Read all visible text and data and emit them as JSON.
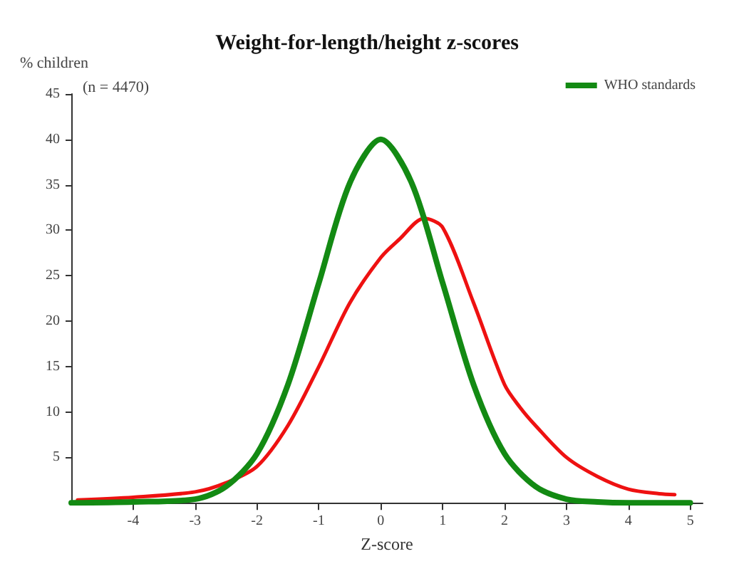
{
  "chart_data": {
    "type": "line",
    "title": "Weight-for-length/height z-scores",
    "xlabel": "Z-score",
    "ylabel": "% children",
    "annotations": [
      "(n = 4470)"
    ],
    "xlim": [
      -5,
      5.2
    ],
    "xticks": [
      -4,
      -3,
      -2,
      -1,
      0,
      1,
      2,
      3,
      4,
      5
    ],
    "ylim": [
      0,
      45
    ],
    "yticks": [
      5,
      10,
      15,
      20,
      25,
      30,
      35,
      40,
      45
    ],
    "grid": false,
    "legend": "top right",
    "marker": "none",
    "line_style": "solid",
    "series": [
      {
        "color": "#ee1111",
        "x": [
          -4.9,
          -4,
          -3,
          -2.5,
          -2,
          -1.5,
          -1,
          -0.5,
          0,
          0.3,
          0.7,
          1,
          1.5,
          2,
          2.25,
          2.5,
          3,
          3.5,
          4,
          4.5,
          4.75
        ],
        "values": [
          0.3,
          0.6,
          1.2,
          2.2,
          4,
          8.5,
          15,
          22,
          27,
          29,
          31.3,
          30.3,
          22,
          13,
          10.5,
          8.5,
          5,
          2.9,
          1.5,
          1,
          0.9
        ]
      },
      {
        "name": "WHO standards",
        "color": "#138a13",
        "x": [
          -5,
          -4,
          -3,
          -2.5,
          -2,
          -1.5,
          -1,
          -0.5,
          0,
          0.5,
          1,
          1.5,
          2,
          2.5,
          3,
          3.5,
          4,
          5
        ],
        "values": [
          0,
          0.1,
          0.4,
          1.8,
          5.4,
          13,
          24.2,
          35.2,
          40,
          35.2,
          24.2,
          13,
          5.4,
          1.8,
          0.4,
          0.1,
          0,
          0
        ]
      }
    ]
  }
}
